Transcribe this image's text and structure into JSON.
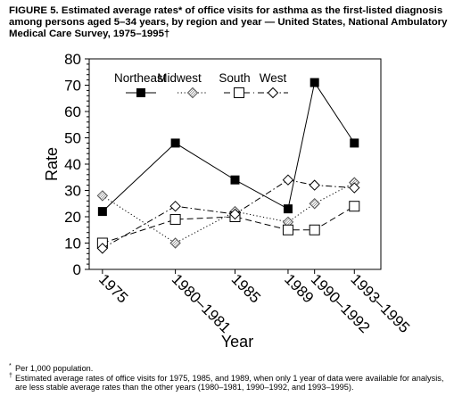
{
  "title": "FIGURE 5. Estimated average rates* of office visits for asthma as the first-listed diagnosis among persons aged 5–34 years, by region and year — United States, National Ambulatory Medical Care Survey, 1975–1995†",
  "footnotes": [
    {
      "mark": "*",
      "text": "Per 1,000 population."
    },
    {
      "mark": "†",
      "text": "Estimated average rates of office visits for 1975, 1985, and 1989, when only 1 year of data were available for analysis, are less stable average rates than the other years (1980–1981, 1990–1992, and 1993–1995)."
    }
  ],
  "chart_data": {
    "type": "line",
    "xlabel": "Year",
    "ylabel": "Rate",
    "ylim": [
      0,
      80
    ],
    "yticks": [
      0,
      10,
      20,
      30,
      40,
      50,
      60,
      70,
      80
    ],
    "x": [
      1975,
      1980.5,
      1985,
      1989,
      1991,
      1994
    ],
    "categories": [
      "1975",
      "1980–1981",
      "1985",
      "1989",
      "1990–1992",
      "1993–1995"
    ],
    "grid": false,
    "legend_placement": "top-left",
    "series": [
      {
        "name": "Northeast",
        "values": [
          22,
          48,
          34,
          23,
          71,
          48
        ],
        "marker": "filled-square",
        "line": "solid",
        "color": "#000000"
      },
      {
        "name": "Midwest",
        "values": [
          28,
          10,
          22,
          18,
          25,
          33
        ],
        "marker": "diamond-hatched",
        "line": "dotted",
        "color": "#000000"
      },
      {
        "name": "South",
        "values": [
          10,
          19,
          20,
          15,
          15,
          24
        ],
        "marker": "open-square",
        "line": "dashed",
        "color": "#000000"
      },
      {
        "name": "West",
        "values": [
          8,
          24,
          21,
          34,
          32,
          31
        ],
        "marker": "open-diamond",
        "line": "dash-dot",
        "color": "#000000"
      }
    ]
  }
}
